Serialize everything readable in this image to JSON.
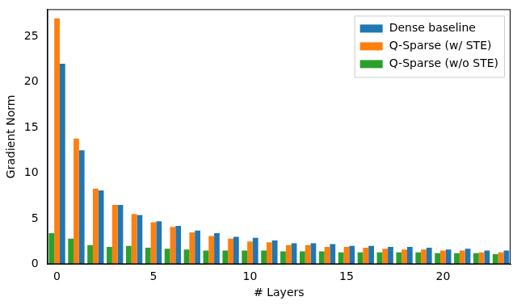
{
  "chart_data": {
    "type": "bar",
    "x_label": "# Layers",
    "y_label": "Gradient Norm",
    "categories": [
      "0",
      null,
      null,
      null,
      null,
      "5",
      null,
      null,
      null,
      null,
      "10",
      null,
      null,
      null,
      null,
      "15",
      null,
      null,
      null,
      null,
      "20",
      null,
      null,
      null
    ],
    "series": [
      {
        "name": "Dense baseline",
        "color": "#1f77b4",
        "values": [
          22.0,
          12.5,
          8.1,
          6.5,
          5.4,
          4.7,
          4.2,
          3.7,
          3.4,
          3.0,
          2.9,
          2.6,
          2.3,
          2.3,
          2.2,
          2.0,
          2.0,
          1.9,
          1.9,
          1.8,
          1.6,
          1.7,
          1.5,
          1.5
        ]
      },
      {
        "name": "Q-Sparse (w/ STE)",
        "color": "#ff7f0e",
        "values": [
          27.0,
          13.8,
          8.3,
          6.5,
          5.5,
          4.6,
          4.1,
          3.5,
          3.1,
          2.8,
          2.5,
          2.4,
          2.1,
          2.1,
          1.9,
          1.9,
          1.8,
          1.7,
          1.6,
          1.6,
          1.5,
          1.5,
          1.3,
          1.3
        ]
      },
      {
        "name": "Q-Sparse (w/o STE)",
        "color": "#2ca02c",
        "values": [
          3.4,
          2.8,
          2.1,
          1.9,
          2.0,
          1.8,
          1.7,
          1.6,
          1.5,
          1.5,
          1.5,
          1.5,
          1.4,
          1.4,
          1.4,
          1.3,
          1.3,
          1.3,
          1.3,
          1.3,
          1.2,
          1.2,
          1.2,
          1.1
        ]
      }
    ],
    "ylim": [
      0,
      28
    ],
    "yticks": [
      0,
      5,
      10,
      15,
      20,
      25
    ],
    "grid": false,
    "legend": "upper right"
  }
}
